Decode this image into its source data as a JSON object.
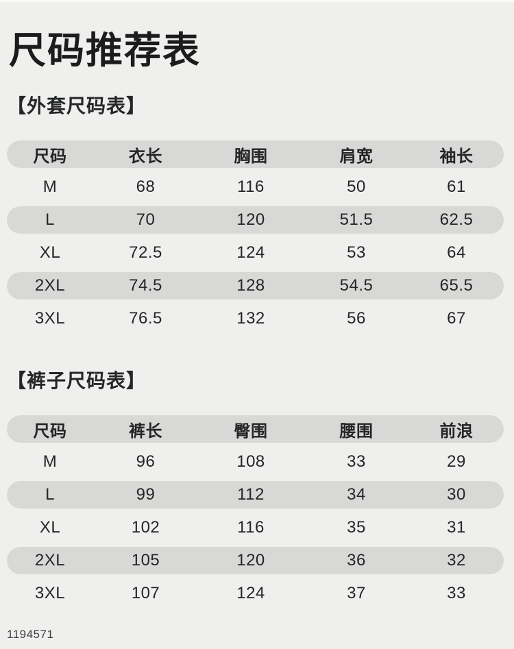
{
  "page": {
    "title": "尺码推荐表",
    "watermark": "1194571"
  },
  "colors": {
    "background": "#eff0ee",
    "row_highlight": "#d8d9d6",
    "text": "#232527",
    "title_text": "#1c1c1c"
  },
  "tables": [
    {
      "section_title": "【外套尺码表】",
      "headers": [
        "尺码",
        "衣长",
        "胸围",
        "肩宽",
        "袖长"
      ],
      "rows": [
        [
          "M",
          "68",
          "116",
          "50",
          "61"
        ],
        [
          "L",
          "70",
          "120",
          "51.5",
          "62.5"
        ],
        [
          "XL",
          "72.5",
          "124",
          "53",
          "64"
        ],
        [
          "2XL",
          "74.5",
          "128",
          "54.5",
          "65.5"
        ],
        [
          "3XL",
          "76.5",
          "132",
          "56",
          "67"
        ]
      ]
    },
    {
      "section_title": "【裤子尺码表】",
      "headers": [
        "尺码",
        "裤长",
        "臀围",
        "腰围",
        "前浪"
      ],
      "rows": [
        [
          "M",
          "96",
          "108",
          "33",
          "29"
        ],
        [
          "L",
          "99",
          "112",
          "34",
          "30"
        ],
        [
          "XL",
          "102",
          "116",
          "35",
          "31"
        ],
        [
          "2XL",
          "105",
          "120",
          "36",
          "32"
        ],
        [
          "3XL",
          "107",
          "124",
          "37",
          "33"
        ]
      ]
    }
  ]
}
